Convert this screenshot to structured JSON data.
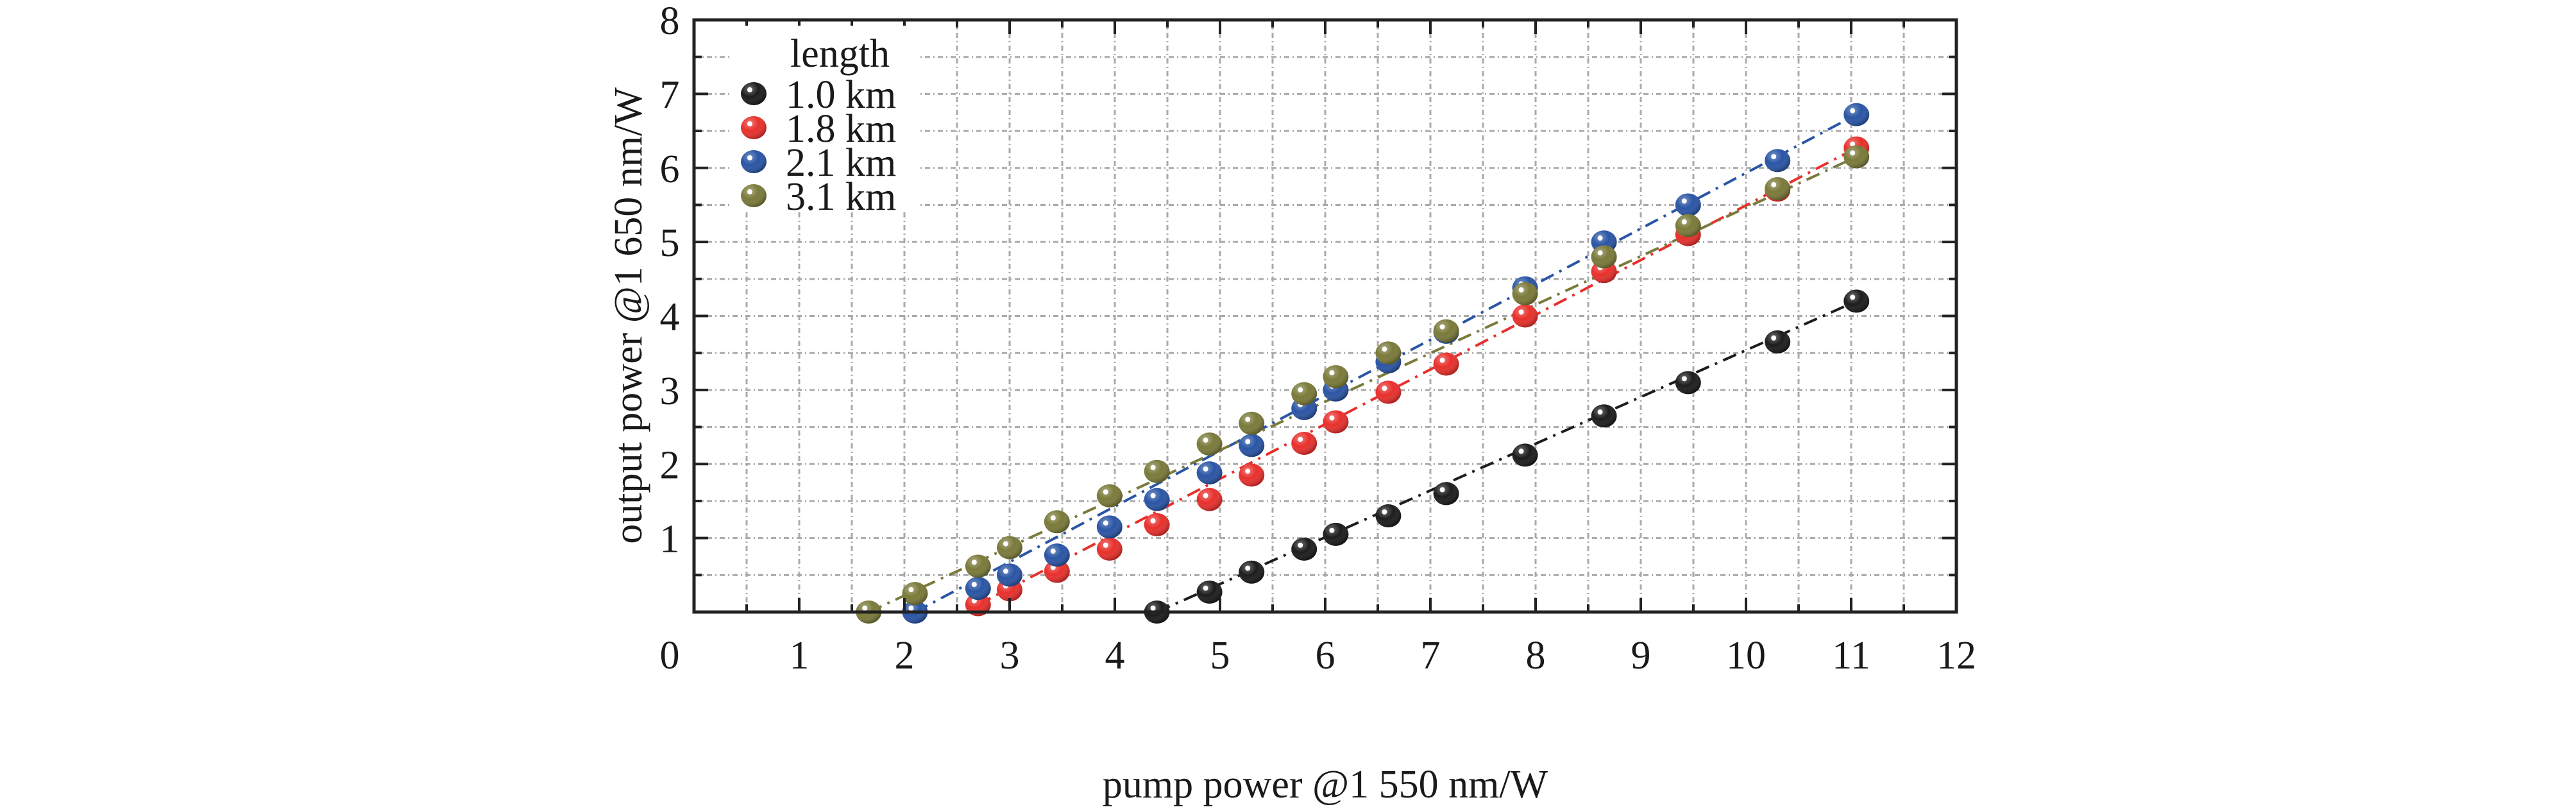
{
  "chart_data": {
    "type": "scatter",
    "title": "",
    "xlabel": "pump power @1 550 nm/W",
    "ylabel": "output power @1 650 nm/W",
    "xlim": [
      0,
      12
    ],
    "ylim": [
      0,
      8
    ],
    "xticks": [
      "0",
      "1",
      "2",
      "3",
      "4",
      "5",
      "6",
      "7",
      "8",
      "9",
      "10",
      "11",
      "12"
    ],
    "yticks": [
      "1",
      "2",
      "3",
      "4",
      "5",
      "6",
      "7",
      "8"
    ],
    "grid": true,
    "legend": {
      "title": "length",
      "placement": "top-left"
    },
    "series": [
      {
        "name": "1.0 km",
        "color": "#1c1c1c",
        "x": [
          4.4,
          4.9,
          5.3,
          5.8,
          6.1,
          6.6,
          7.15,
          7.9,
          8.65,
          9.45,
          10.3,
          11.05
        ],
        "y": [
          0,
          0.27,
          0.54,
          0.85,
          1.05,
          1.3,
          1.6,
          2.12,
          2.65,
          3.1,
          3.65,
          4.2
        ]
      },
      {
        "name": "1.8 km",
        "color": "#e8302c",
        "x": [
          2.7,
          3.0,
          3.45,
          3.95,
          4.4,
          4.9,
          5.3,
          5.8,
          6.1,
          6.6,
          7.15,
          7.9,
          8.65,
          9.45,
          10.3,
          11.05
        ],
        "y": [
          0.1,
          0.3,
          0.55,
          0.85,
          1.18,
          1.52,
          1.85,
          2.28,
          2.57,
          2.97,
          3.35,
          4.0,
          4.6,
          5.1,
          5.7,
          6.27
        ]
      },
      {
        "name": "2.1 km",
        "color": "#2a55a5",
        "x": [
          2.1,
          2.7,
          3.0,
          3.45,
          3.95,
          4.4,
          4.9,
          5.3,
          5.8,
          6.1,
          6.6,
          7.15,
          7.9,
          8.65,
          9.45,
          10.3,
          11.05
        ],
        "y": [
          0,
          0.32,
          0.5,
          0.77,
          1.15,
          1.52,
          1.88,
          2.25,
          2.75,
          3.0,
          3.38,
          3.78,
          4.38,
          5.0,
          5.5,
          6.1,
          6.72
        ]
      },
      {
        "name": "3.1 km",
        "color": "#7a7a3a",
        "x": [
          1.66,
          2.1,
          2.7,
          3.0,
          3.45,
          3.95,
          4.4,
          4.9,
          5.3,
          5.8,
          6.1,
          6.6,
          7.15,
          7.9,
          8.65,
          9.45,
          10.3,
          11.05
        ],
        "y": [
          0,
          0.25,
          0.62,
          0.87,
          1.22,
          1.57,
          1.9,
          2.27,
          2.55,
          2.95,
          3.18,
          3.5,
          3.8,
          4.3,
          4.8,
          5.22,
          5.72,
          6.15
        ]
      }
    ]
  }
}
